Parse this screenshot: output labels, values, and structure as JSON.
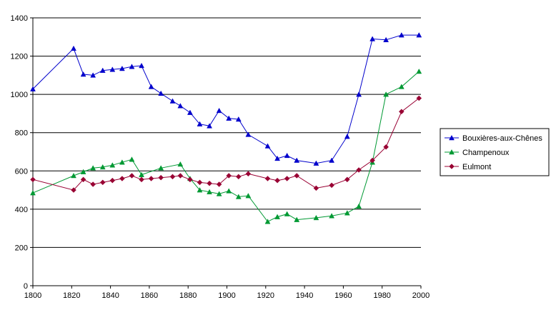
{
  "chart_data": {
    "type": "line",
    "title": "",
    "xlabel": "",
    "ylabel": "",
    "xlim": [
      1800,
      2000
    ],
    "ylim": [
      0,
      1400
    ],
    "xticks": [
      1800,
      1820,
      1840,
      1860,
      1880,
      1900,
      1920,
      1940,
      1960,
      1980,
      2000
    ],
    "yticks": [
      0,
      200,
      400,
      600,
      800,
      1000,
      1200,
      1400
    ],
    "grid": "horizontal",
    "legend_position": "right",
    "series": [
      {
        "name": "Bouxières-aux-Chênes",
        "color": "#0000cc",
        "marker": "triangle",
        "x": [
          1800,
          1821,
          1826,
          1831,
          1836,
          1841,
          1846,
          1851,
          1856,
          1861,
          1866,
          1872,
          1876,
          1881,
          1886,
          1891,
          1896,
          1901,
          1906,
          1911,
          1921,
          1926,
          1931,
          1936,
          1946,
          1954,
          1962,
          1968,
          1975,
          1982,
          1990,
          1999
        ],
        "y": [
          1028,
          1240,
          1105,
          1100,
          1125,
          1130,
          1135,
          1145,
          1150,
          1040,
          1005,
          965,
          940,
          905,
          845,
          835,
          915,
          875,
          870,
          790,
          730,
          665,
          680,
          655,
          640,
          655,
          780,
          1000,
          1290,
          1285,
          1310,
          1310
        ]
      },
      {
        "name": "Champenoux",
        "color": "#009933",
        "marker": "triangle",
        "x": [
          1800,
          1821,
          1826,
          1831,
          1836,
          1841,
          1846,
          1851,
          1856,
          1866,
          1876,
          1881,
          1886,
          1891,
          1896,
          1901,
          1906,
          1911,
          1921,
          1926,
          1931,
          1936,
          1946,
          1954,
          1962,
          1968,
          1975,
          1982,
          1990,
          1999
        ],
        "y": [
          485,
          575,
          595,
          615,
          620,
          630,
          645,
          660,
          580,
          615,
          635,
          560,
          500,
          490,
          480,
          495,
          465,
          470,
          335,
          360,
          375,
          345,
          355,
          365,
          380,
          415,
          645,
          1000,
          1040,
          1120
        ]
      },
      {
        "name": "Eulmont",
        "color": "#990033",
        "marker": "diamond",
        "x": [
          1800,
          1821,
          1826,
          1831,
          1836,
          1841,
          1846,
          1851,
          1856,
          1861,
          1866,
          1872,
          1876,
          1881,
          1886,
          1891,
          1896,
          1901,
          1906,
          1911,
          1921,
          1926,
          1931,
          1936,
          1946,
          1954,
          1962,
          1968,
          1975,
          1982,
          1990,
          1999
        ],
        "y": [
          555,
          500,
          555,
          530,
          540,
          550,
          560,
          575,
          555,
          560,
          565,
          570,
          575,
          555,
          540,
          535,
          530,
          575,
          570,
          585,
          560,
          550,
          560,
          575,
          510,
          525,
          555,
          605,
          655,
          725,
          910,
          980
        ]
      }
    ]
  }
}
